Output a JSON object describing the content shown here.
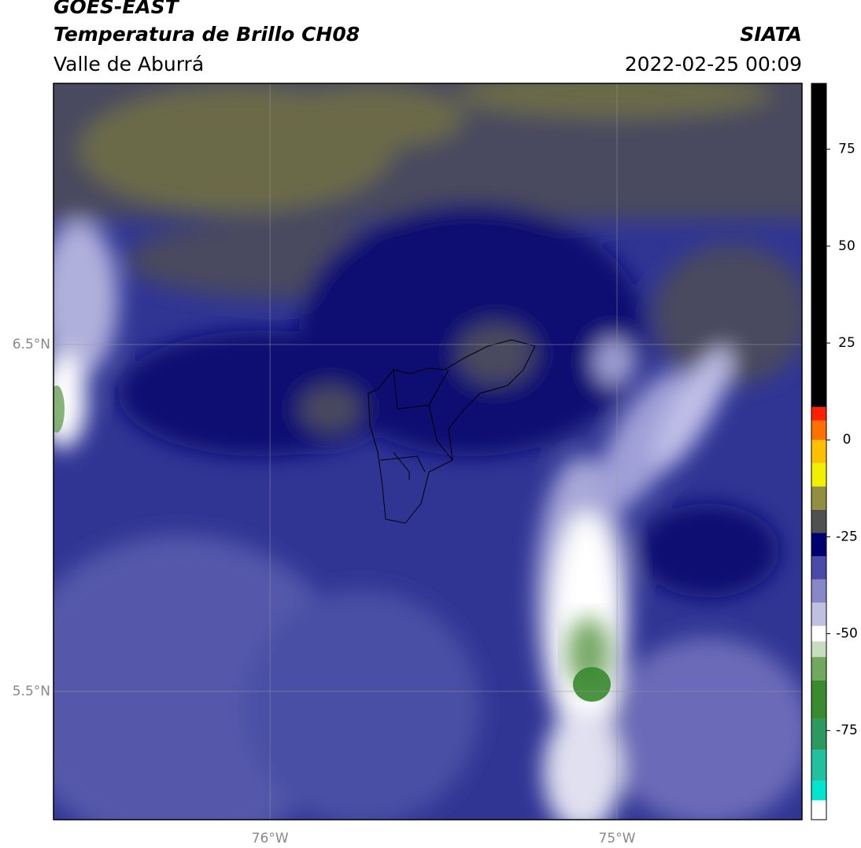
{
  "header": {
    "satellite": "GOES-EAST",
    "title": "Temperatura de Brillo CH08",
    "region": "Valle de Aburrá",
    "source": "SIATA",
    "datetime": "2022-02-25 00:09"
  },
  "map": {
    "xlim": [
      -76.624,
      -74.467
    ],
    "ylim": [
      5.13,
      7.253
    ],
    "xticks": [
      {
        "value": -76,
        "label": "76°W"
      },
      {
        "value": -75,
        "label": "75°W"
      }
    ],
    "yticks": [
      {
        "value": 6.5,
        "label": "6.5°N"
      },
      {
        "value": 5.5,
        "label": "5.5°N"
      }
    ],
    "grid": true
  },
  "colorbar": {
    "lim": [
      -98,
      92
    ],
    "ticks": [
      75,
      50,
      25,
      0,
      -25,
      -50,
      -75
    ],
    "bands": [
      {
        "from": -98,
        "to": -93,
        "color": "#ffffff"
      },
      {
        "from": -93,
        "to": -88,
        "color": "#00e5d0"
      },
      {
        "from": -88,
        "to": -80,
        "color": "#20c0a0"
      },
      {
        "from": -80,
        "to": -72,
        "color": "#2a9a60"
      },
      {
        "from": -72,
        "to": -62,
        "color": "#3a8a30"
      },
      {
        "from": -62,
        "to": -56,
        "color": "#70a860"
      },
      {
        "from": -56,
        "to": -52,
        "color": "#c8dcc0"
      },
      {
        "from": -52,
        "to": -48,
        "color": "#ffffff"
      },
      {
        "from": -48,
        "to": -42,
        "color": "#c0c0e0"
      },
      {
        "from": -42,
        "to": -36,
        "color": "#8888c8"
      },
      {
        "from": -36,
        "to": -30,
        "color": "#4a4aa8"
      },
      {
        "from": -30,
        "to": -24,
        "color": "#000070"
      },
      {
        "from": -24,
        "to": -18,
        "color": "#505050"
      },
      {
        "from": -18,
        "to": -12,
        "color": "#909040"
      },
      {
        "from": -12,
        "to": -6,
        "color": "#f0f000"
      },
      {
        "from": -6,
        "to": 0,
        "color": "#ffc000"
      },
      {
        "from": 0,
        "to": 5,
        "color": "#ff7000"
      },
      {
        "from": 5,
        "to": 8.5,
        "color": "#ff2000"
      },
      {
        "from": 8.5,
        "to": 92,
        "color": "#000000"
      }
    ]
  }
}
